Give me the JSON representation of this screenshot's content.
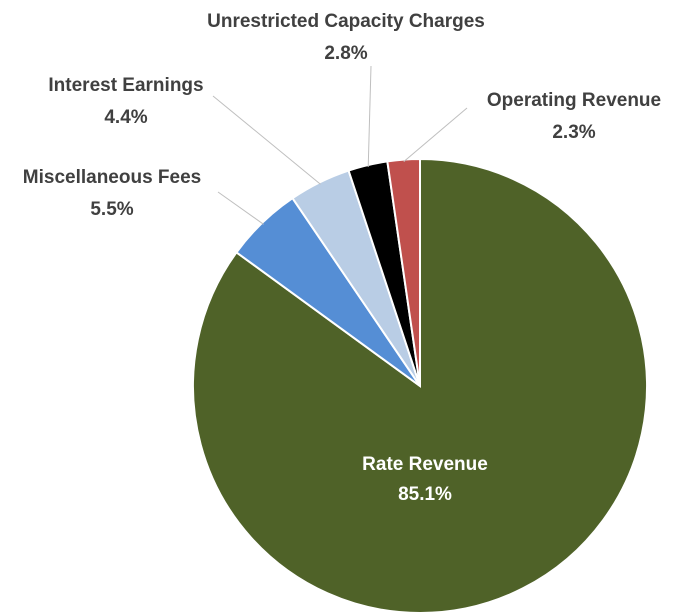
{
  "chart_data": {
    "type": "pie",
    "categories": [
      "Rate Revenue",
      "Miscellaneous Fees",
      "Interest Earnings",
      "Unrestricted Capacity Charges",
      "Operating Revenue"
    ],
    "values": [
      85.1,
      5.5,
      4.4,
      2.8,
      2.3
    ],
    "value_labels": [
      "85.1%",
      "5.5%",
      "4.4%",
      "2.8%",
      "2.3%"
    ],
    "colors": [
      "#4f6228",
      "#558ed5",
      "#b9cde5",
      "#000000",
      "#c0504d"
    ]
  }
}
